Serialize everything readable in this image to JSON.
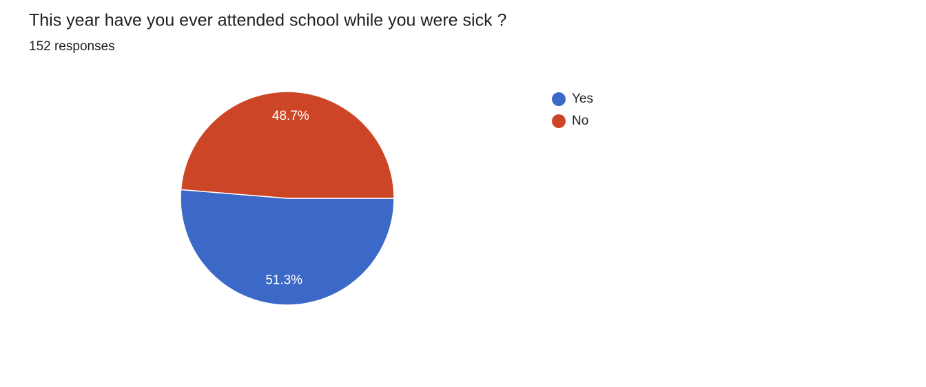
{
  "chart_data": {
    "type": "pie",
    "title": "This year have you ever attended school while you were sick ?",
    "subtitle": "152 responses",
    "categories": [
      "Yes",
      "No"
    ],
    "values": [
      51.3,
      48.7
    ],
    "value_labels": [
      "51.3%",
      "48.7%"
    ],
    "colors": [
      "#3c68c7",
      "#cc4526"
    ]
  }
}
